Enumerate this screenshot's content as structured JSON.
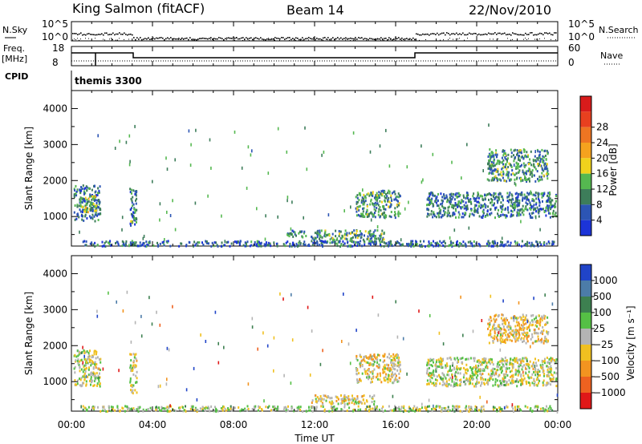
{
  "header": {
    "station": "King Salmon (fitACF)",
    "beam": "Beam 14",
    "date": "22/Nov/2010"
  },
  "strip": {
    "nsky_label": "N.Sky",
    "nsky_ticks": [
      "10^5",
      "10^0"
    ],
    "nsearch_label": "N.Search",
    "nsearch_ticks": [
      "10^5",
      "10^0"
    ],
    "freq_label_1": "Freq.",
    "freq_label_2": "[MHz]",
    "freq_ticks": [
      "18",
      "8"
    ],
    "nave_label": "Nave",
    "nave_ticks": [
      "60",
      "0"
    ],
    "cpid_label": "CPID",
    "cpid_value": "themis 3300"
  },
  "axes": {
    "ylabel": "Slant Range [km]",
    "xlabel": "Time UT",
    "x_ticks": [
      "00:00",
      "04:00",
      "08:00",
      "12:00",
      "16:00",
      "20:00",
      "00:00"
    ],
    "y_ticks": [
      "1000",
      "2000",
      "3000",
      "4000"
    ]
  },
  "colorbars": {
    "power": {
      "label": "Power [dB]",
      "ticks": [
        "4",
        "8",
        "12",
        "16",
        "20",
        "24",
        "28"
      ],
      "colors": [
        "#1c34d8",
        "#2c55b4",
        "#3d7d5a",
        "#55b850",
        "#f0d21c",
        "#f5a21e",
        "#ee7522",
        "#e8401f",
        "#d81b1b"
      ]
    },
    "velocity": {
      "label": "Velocity [m s⁻¹]",
      "ticks": [
        "1000",
        "500",
        "100",
        "25",
        "−25",
        "−100",
        "−500",
        "−1000"
      ],
      "colors": [
        "#2044c8",
        "#4c7ca8",
        "#3d8050",
        "#55c045",
        "#b4b4b4",
        "#f0c020",
        "#f39420",
        "#ee6220",
        "#e01818"
      ]
    }
  },
  "chart_data": {
    "type": "heatmap",
    "x_unit": "hours UT",
    "xlim": [
      0,
      24
    ],
    "y_unit": "km",
    "ylim": [
      180,
      4500
    ],
    "panels": [
      {
        "name": "Power",
        "field": "power_dB",
        "range": [
          0,
          30
        ],
        "regions": [
          {
            "t": [
              0.1,
              1.4
            ],
            "r": [
              900,
              1900
            ],
            "value": 7
          },
          {
            "t": [
              0.4,
              1.2
            ],
            "r": [
              1150,
              1600
            ],
            "value": 12
          },
          {
            "t": [
              2.85,
              3.2
            ],
            "r": [
              700,
              1800
            ],
            "value": 7
          },
          {
            "t": [
              2.9,
              3.05
            ],
            "r": [
              700,
              900
            ],
            "value": 20
          },
          {
            "t": [
              10.6,
              11.6
            ],
            "r": [
              450,
              650
            ],
            "value": 8
          },
          {
            "t": [
              11.8,
              15.5
            ],
            "r": [
              300,
              650
            ],
            "value": 9
          },
          {
            "t": [
              0.5,
              23.8
            ],
            "r": [
              200,
              350
            ],
            "value": 6
          },
          {
            "t": [
              14.0,
              16.2
            ],
            "r": [
              1000,
              1750
            ],
            "value": 9
          },
          {
            "t": [
              17.5,
              23.9
            ],
            "r": [
              1000,
              1700
            ],
            "value": 7
          },
          {
            "t": [
              20.5,
              23.5
            ],
            "r": [
              2000,
              2900
            ],
            "value": 9
          }
        ]
      },
      {
        "name": "Velocity",
        "field": "velocity_m_s",
        "range": [
          -1000,
          1000
        ],
        "regions": [
          {
            "t": [
              0.1,
              1.4
            ],
            "r": [
              900,
              1900
            ],
            "value": 0
          },
          {
            "t": [
              2.85,
              3.2
            ],
            "r": [
              700,
              1800
            ],
            "value": -50
          },
          {
            "t": [
              11.8,
              15.0
            ],
            "r": [
              400,
              650
            ],
            "value": -80
          },
          {
            "t": [
              0.5,
              23.8
            ],
            "r": [
              200,
              350
            ],
            "value": 40
          },
          {
            "t": [
              14.0,
              16.2
            ],
            "r": [
              1000,
              1800
            ],
            "value": -150
          },
          {
            "t": [
              17.5,
              23.9
            ],
            "r": [
              900,
              1700
            ],
            "value": 0
          },
          {
            "t": [
              20.5,
              23.5
            ],
            "r": [
              2100,
              2900
            ],
            "value": -200
          }
        ]
      }
    ]
  }
}
